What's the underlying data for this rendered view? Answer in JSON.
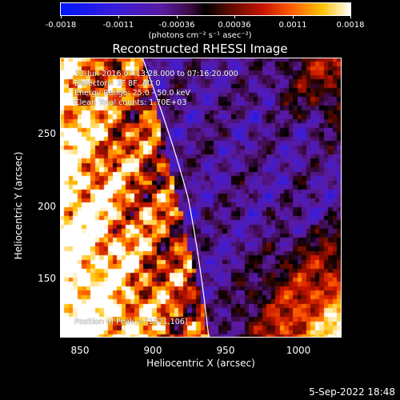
{
  "colorbar": {
    "tick_labels": [
      "-0.0018",
      "-0.0011",
      "-0.00036",
      "0.00036",
      "0.0011",
      "0.0018"
    ],
    "unit_label": "(photons cm⁻² s⁻¹ asec⁻²)"
  },
  "title": "Reconstructed RHESSI Image",
  "annotations": {
    "time_range": "13-Jun-2016 07:13:28.000 to 07:16:20.000",
    "detectors": "Detectors: 3F 8F, Att 0",
    "energy": "Energy Range: 25.0 - 50.0 keV",
    "clean": "Clean     Total counts: 1.70E+03",
    "peak": "Position of Peak = [1021,106]"
  },
  "axes": {
    "x_ticks": [
      "850",
      "900",
      "950",
      "1000"
    ],
    "y_ticks": [
      "250",
      "200",
      "150"
    ],
    "xlabel": "Heliocentric X (arcsec)",
    "ylabel": "Heliocentric Y (arcsec)"
  },
  "timestamp": "5-Sep-2022 18:48"
}
